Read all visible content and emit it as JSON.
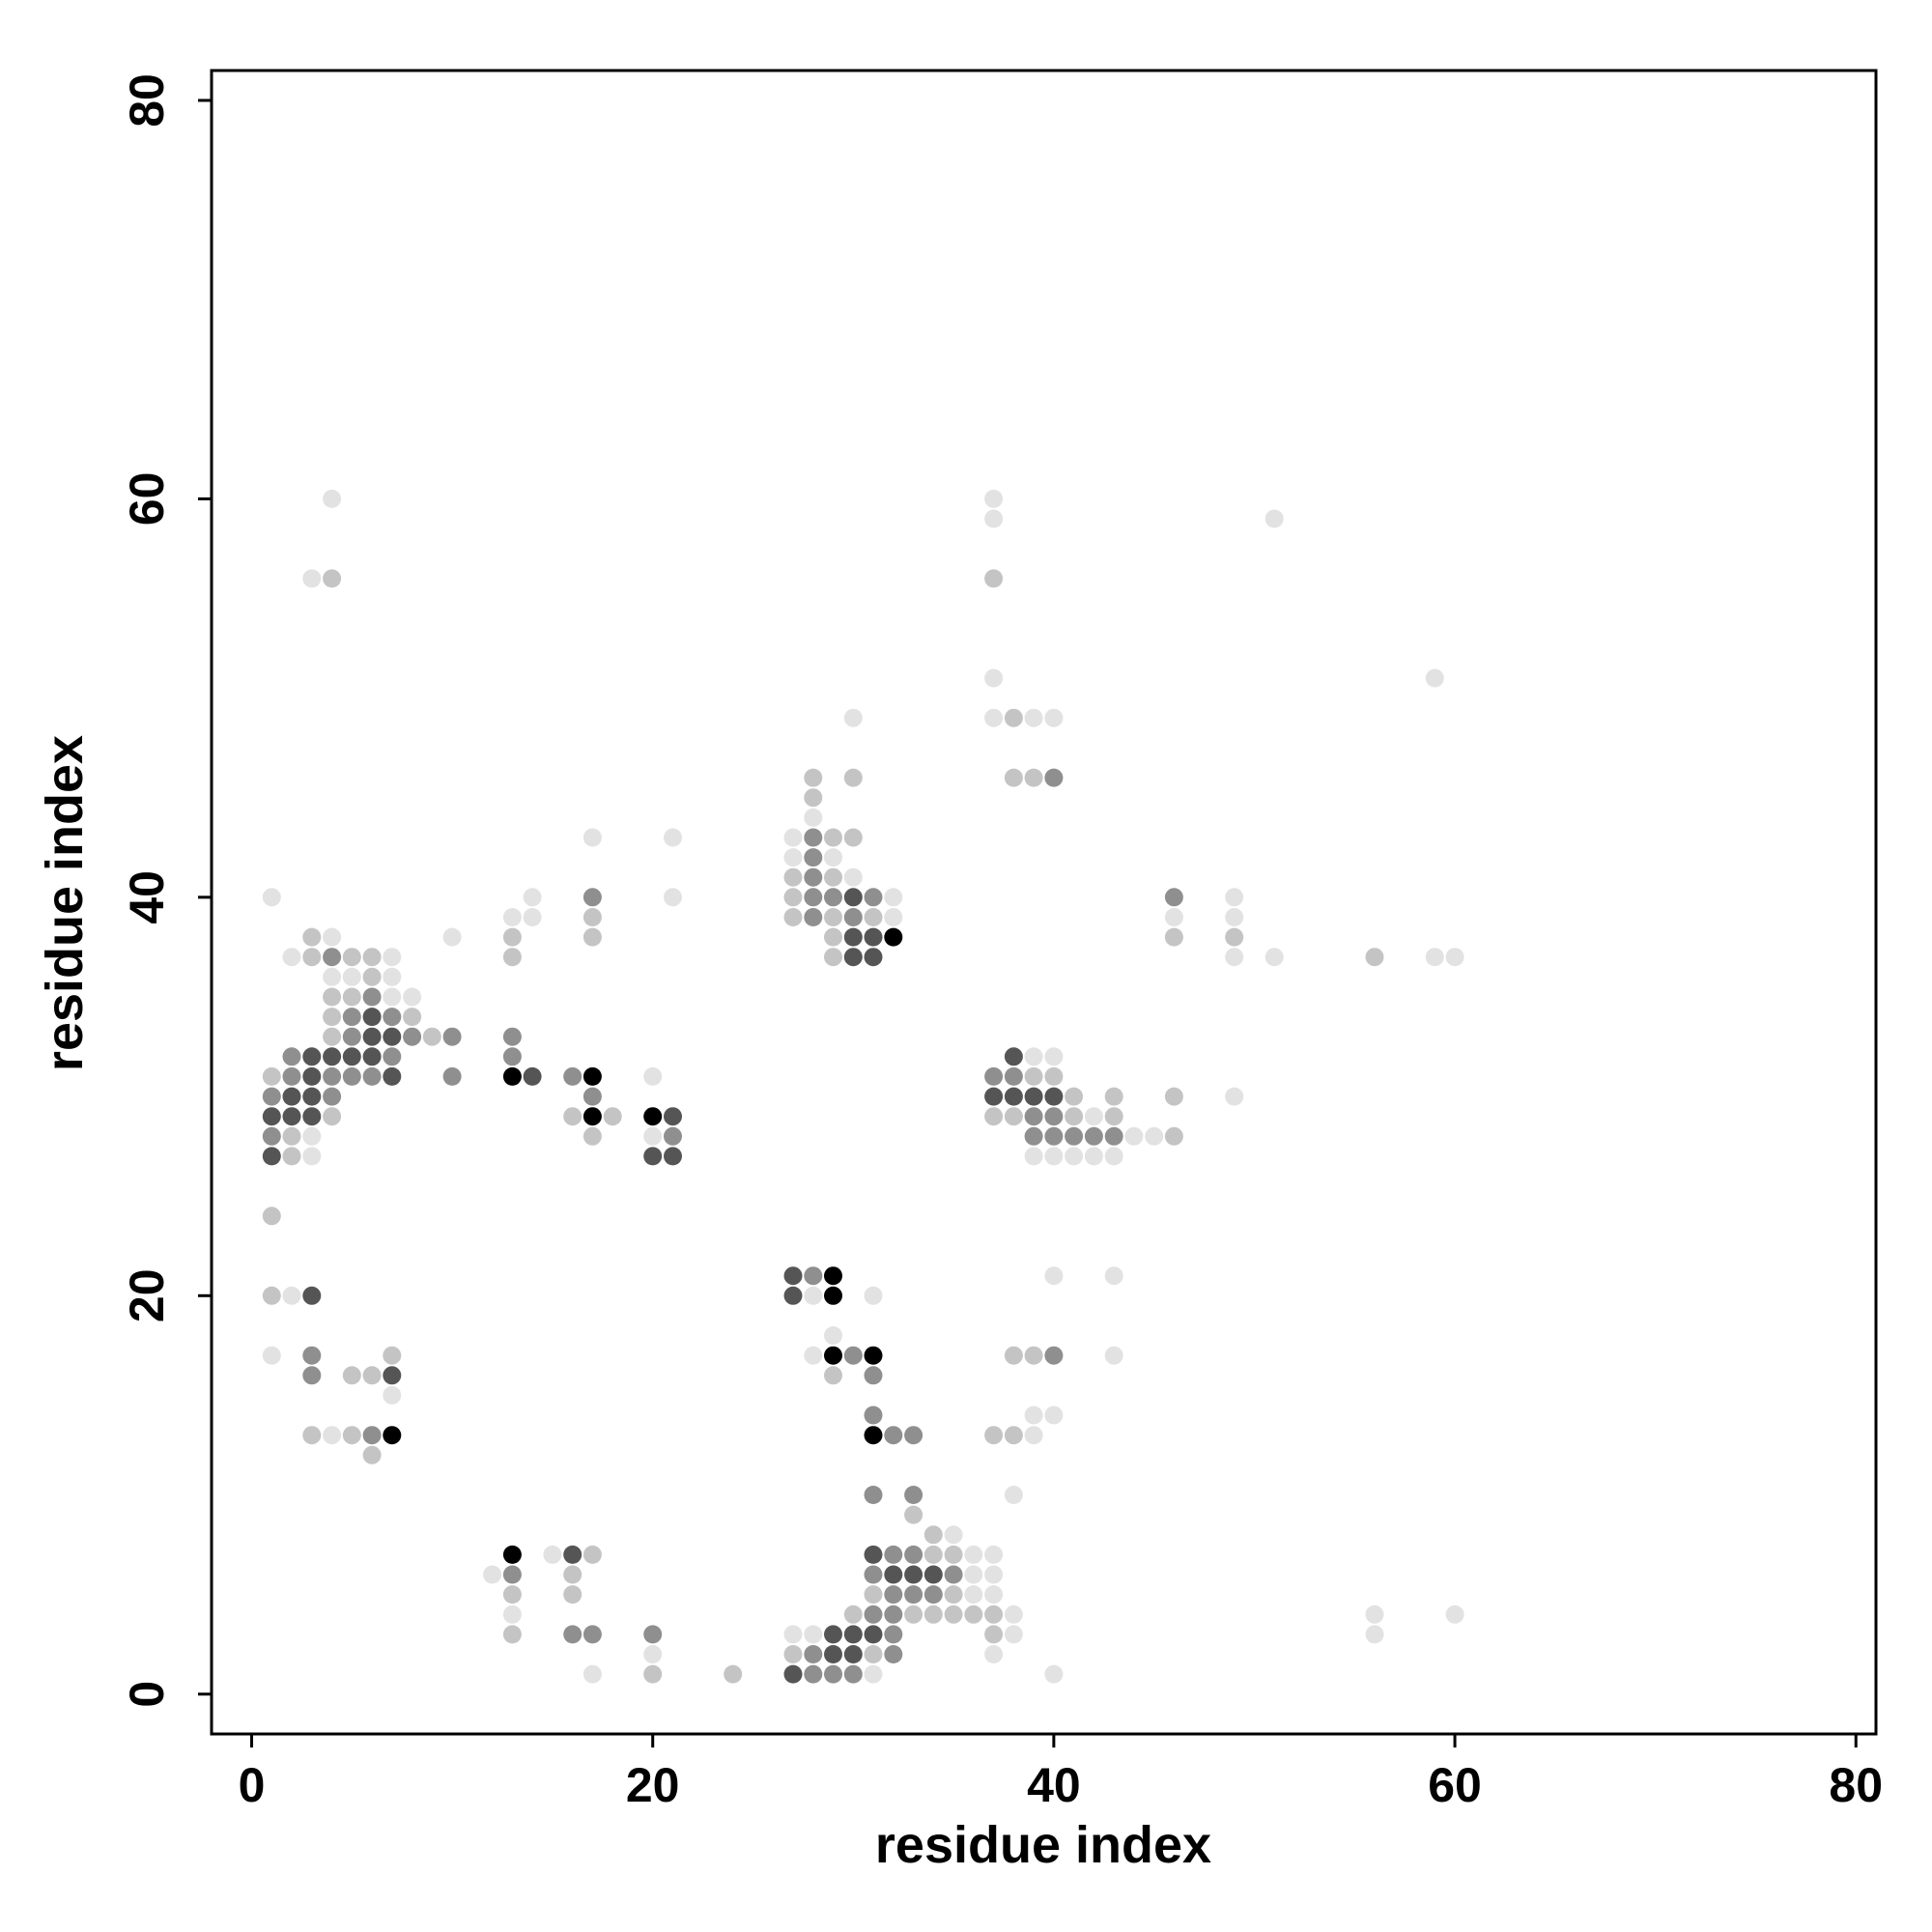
{
  "chart_data": {
    "type": "scatter",
    "title": "",
    "xlabel": "residue index",
    "ylabel": "residue index",
    "xlim": [
      -2,
      81
    ],
    "ylim": [
      -2,
      81.5
    ],
    "xticks": [
      0,
      20,
      40,
      60,
      80
    ],
    "yticks": [
      0,
      20,
      40,
      60,
      80
    ],
    "grid": false,
    "legend": "none",
    "color_scale": "grayscale, darker = higher value (1-5)",
    "points": [
      [
        4,
        60,
        1
      ],
      [
        3,
        56,
        1
      ],
      [
        4,
        56,
        2
      ],
      [
        1,
        40,
        1
      ],
      [
        3,
        38,
        2
      ],
      [
        4,
        38,
        1
      ],
      [
        2,
        37,
        1
      ],
      [
        3,
        37,
        2
      ],
      [
        4,
        37,
        3
      ],
      [
        5,
        37,
        2
      ],
      [
        6,
        37,
        2
      ],
      [
        7,
        37,
        1
      ],
      [
        4,
        36,
        1
      ],
      [
        5,
        36,
        1
      ],
      [
        6,
        36,
        2
      ],
      [
        7,
        36,
        1
      ],
      [
        4,
        35,
        2
      ],
      [
        5,
        35,
        2
      ],
      [
        6,
        35,
        3
      ],
      [
        7,
        35,
        1
      ],
      [
        8,
        35,
        1
      ],
      [
        4,
        34,
        2
      ],
      [
        5,
        34,
        3
      ],
      [
        6,
        34,
        4
      ],
      [
        7,
        34,
        3
      ],
      [
        8,
        34,
        2
      ],
      [
        4,
        33,
        2
      ],
      [
        5,
        33,
        3
      ],
      [
        6,
        33,
        4
      ],
      [
        7,
        33,
        4
      ],
      [
        8,
        33,
        3
      ],
      [
        9,
        33,
        2
      ],
      [
        10,
        33,
        3
      ],
      [
        2,
        32,
        3
      ],
      [
        3,
        32,
        4
      ],
      [
        4,
        32,
        4
      ],
      [
        5,
        32,
        4
      ],
      [
        6,
        32,
        4
      ],
      [
        7,
        32,
        3
      ],
      [
        1,
        31,
        2
      ],
      [
        2,
        31,
        3
      ],
      [
        3,
        31,
        4
      ],
      [
        4,
        31,
        3
      ],
      [
        5,
        31,
        3
      ],
      [
        6,
        31,
        3
      ],
      [
        7,
        31,
        4
      ],
      [
        10,
        31,
        3
      ],
      [
        1,
        30,
        3
      ],
      [
        2,
        30,
        4
      ],
      [
        3,
        30,
        4
      ],
      [
        4,
        30,
        3
      ],
      [
        1,
        29,
        4
      ],
      [
        2,
        29,
        4
      ],
      [
        3,
        29,
        4
      ],
      [
        4,
        29,
        2
      ],
      [
        1,
        28,
        3
      ],
      [
        2,
        28,
        2
      ],
      [
        3,
        28,
        1
      ],
      [
        1,
        27,
        4
      ],
      [
        2,
        27,
        2
      ],
      [
        3,
        27,
        1
      ],
      [
        1,
        24,
        2
      ],
      [
        1,
        20,
        2
      ],
      [
        2,
        20,
        1
      ],
      [
        3,
        20,
        4
      ],
      [
        1,
        17,
        1
      ],
      [
        3,
        17,
        3
      ],
      [
        7,
        17,
        2
      ],
      [
        3,
        16,
        3
      ],
      [
        5,
        16,
        2
      ],
      [
        6,
        16,
        2
      ],
      [
        7,
        16,
        4
      ],
      [
        7,
        15,
        1
      ],
      [
        3,
        13,
        2
      ],
      [
        4,
        13,
        1
      ],
      [
        5,
        13,
        2
      ],
      [
        6,
        13,
        3
      ],
      [
        7,
        13,
        5
      ],
      [
        6,
        12,
        2
      ],
      [
        10,
        38,
        1
      ],
      [
        13,
        39,
        1
      ],
      [
        14,
        39,
        1
      ],
      [
        14,
        40,
        1
      ],
      [
        13,
        38,
        2
      ],
      [
        13,
        37,
        2
      ],
      [
        13,
        33,
        3
      ],
      [
        13,
        32,
        3
      ],
      [
        13,
        31,
        5
      ],
      [
        14,
        31,
        4
      ],
      [
        17,
        43,
        1
      ],
      [
        17,
        40,
        3
      ],
      [
        17,
        39,
        2
      ],
      [
        17,
        38,
        2
      ],
      [
        16,
        31,
        3
      ],
      [
        17,
        31,
        5
      ],
      [
        17,
        30,
        3
      ],
      [
        16,
        29,
        2
      ],
      [
        17,
        29,
        5
      ],
      [
        18,
        29,
        2
      ],
      [
        17,
        28,
        2
      ],
      [
        21,
        43,
        1
      ],
      [
        21,
        40,
        1
      ],
      [
        20,
        31,
        1
      ],
      [
        20,
        29,
        5
      ],
      [
        21,
        29,
        4
      ],
      [
        20,
        28,
        1
      ],
      [
        21,
        28,
        3
      ],
      [
        20,
        27,
        4
      ],
      [
        21,
        27,
        4
      ],
      [
        13,
        7,
        5
      ],
      [
        15,
        7,
        1
      ],
      [
        16,
        7,
        4
      ],
      [
        17,
        7,
        2
      ],
      [
        12,
        6,
        1
      ],
      [
        13,
        6,
        3
      ],
      [
        16,
        6,
        2
      ],
      [
        13,
        5,
        2
      ],
      [
        16,
        5,
        2
      ],
      [
        13,
        4,
        1
      ],
      [
        13,
        3,
        2
      ],
      [
        16,
        3,
        3
      ],
      [
        17,
        3,
        3
      ],
      [
        17,
        1,
        1
      ],
      [
        20,
        3,
        3
      ],
      [
        20,
        2,
        1
      ],
      [
        20,
        1,
        2
      ],
      [
        24,
        1,
        2
      ],
      [
        28,
        46,
        2
      ],
      [
        28,
        45,
        2
      ],
      [
        28,
        44,
        1
      ],
      [
        27,
        43,
        1
      ],
      [
        28,
        43,
        3
      ],
      [
        29,
        43,
        2
      ],
      [
        30,
        43,
        2
      ],
      [
        27,
        42,
        1
      ],
      [
        28,
        42,
        3
      ],
      [
        29,
        42,
        1
      ],
      [
        27,
        41,
        2
      ],
      [
        28,
        41,
        3
      ],
      [
        29,
        41,
        2
      ],
      [
        30,
        41,
        1
      ],
      [
        27,
        40,
        2
      ],
      [
        28,
        40,
        3
      ],
      [
        29,
        40,
        3
      ],
      [
        30,
        40,
        4
      ],
      [
        31,
        40,
        3
      ],
      [
        32,
        40,
        1
      ],
      [
        27,
        39,
        2
      ],
      [
        28,
        39,
        3
      ],
      [
        29,
        39,
        2
      ],
      [
        30,
        39,
        3
      ],
      [
        31,
        39,
        2
      ],
      [
        32,
        39,
        1
      ],
      [
        29,
        38,
        2
      ],
      [
        30,
        38,
        4
      ],
      [
        31,
        38,
        4
      ],
      [
        32,
        38,
        5
      ],
      [
        29,
        37,
        2
      ],
      [
        30,
        37,
        4
      ],
      [
        31,
        37,
        4
      ],
      [
        30,
        49,
        1
      ],
      [
        30,
        46,
        2
      ],
      [
        27,
        21,
        4
      ],
      [
        28,
        21,
        3
      ],
      [
        29,
        21,
        5
      ],
      [
        27,
        20,
        4
      ],
      [
        28,
        20,
        1
      ],
      [
        29,
        20,
        5
      ],
      [
        31,
        20,
        1
      ],
      [
        29,
        18,
        1
      ],
      [
        28,
        17,
        1
      ],
      [
        29,
        17,
        5
      ],
      [
        30,
        17,
        3
      ],
      [
        31,
        17,
        5
      ],
      [
        29,
        16,
        2
      ],
      [
        31,
        16,
        3
      ],
      [
        31,
        14,
        3
      ],
      [
        31,
        13,
        5
      ],
      [
        32,
        13,
        3
      ],
      [
        33,
        13,
        3
      ],
      [
        31,
        10,
        3
      ],
      [
        33,
        10,
        3
      ],
      [
        33,
        9,
        2
      ],
      [
        34,
        8,
        2
      ],
      [
        35,
        8,
        1
      ],
      [
        31,
        7,
        4
      ],
      [
        32,
        7,
        3
      ],
      [
        33,
        7,
        3
      ],
      [
        34,
        7,
        2
      ],
      [
        35,
        7,
        2
      ],
      [
        36,
        7,
        1
      ],
      [
        37,
        7,
        1
      ],
      [
        31,
        6,
        3
      ],
      [
        32,
        6,
        4
      ],
      [
        33,
        6,
        4
      ],
      [
        34,
        6,
        4
      ],
      [
        35,
        6,
        3
      ],
      [
        36,
        6,
        1
      ],
      [
        37,
        6,
        1
      ],
      [
        31,
        5,
        2
      ],
      [
        32,
        5,
        3
      ],
      [
        33,
        5,
        3
      ],
      [
        34,
        5,
        3
      ],
      [
        35,
        5,
        2
      ],
      [
        36,
        5,
        1
      ],
      [
        37,
        5,
        1
      ],
      [
        30,
        4,
        2
      ],
      [
        31,
        4,
        3
      ],
      [
        32,
        4,
        3
      ],
      [
        33,
        4,
        2
      ],
      [
        34,
        4,
        2
      ],
      [
        35,
        4,
        2
      ],
      [
        36,
        4,
        2
      ],
      [
        37,
        4,
        2
      ],
      [
        38,
        4,
        1
      ],
      [
        27,
        3,
        1
      ],
      [
        28,
        3,
        1
      ],
      [
        29,
        3,
        4
      ],
      [
        30,
        3,
        4
      ],
      [
        31,
        3,
        4
      ],
      [
        32,
        3,
        3
      ],
      [
        37,
        3,
        2
      ],
      [
        38,
        3,
        1
      ],
      [
        27,
        2,
        2
      ],
      [
        28,
        2,
        3
      ],
      [
        29,
        2,
        4
      ],
      [
        30,
        2,
        4
      ],
      [
        31,
        2,
        2
      ],
      [
        32,
        2,
        3
      ],
      [
        37,
        2,
        1
      ],
      [
        27,
        1,
        4
      ],
      [
        28,
        1,
        3
      ],
      [
        29,
        1,
        3
      ],
      [
        30,
        1,
        3
      ],
      [
        31,
        1,
        1
      ],
      [
        40,
        1,
        1
      ],
      [
        37,
        60,
        1
      ],
      [
        37,
        59,
        1
      ],
      [
        37,
        56,
        2
      ],
      [
        37,
        51,
        1
      ],
      [
        37,
        49,
        1
      ],
      [
        38,
        49,
        2
      ],
      [
        39,
        49,
        1
      ],
      [
        40,
        49,
        1
      ],
      [
        38,
        46,
        2
      ],
      [
        39,
        46,
        2
      ],
      [
        40,
        46,
        3
      ],
      [
        38,
        32,
        4
      ],
      [
        39,
        32,
        1
      ],
      [
        40,
        32,
        1
      ],
      [
        37,
        31,
        3
      ],
      [
        38,
        31,
        3
      ],
      [
        39,
        31,
        2
      ],
      [
        40,
        31,
        2
      ],
      [
        37,
        30,
        4
      ],
      [
        38,
        30,
        4
      ],
      [
        39,
        30,
        4
      ],
      [
        40,
        30,
        4
      ],
      [
        41,
        30,
        2
      ],
      [
        43,
        30,
        2
      ],
      [
        46,
        30,
        2
      ],
      [
        37,
        29,
        2
      ],
      [
        38,
        29,
        2
      ],
      [
        39,
        29,
        3
      ],
      [
        40,
        29,
        3
      ],
      [
        41,
        29,
        2
      ],
      [
        42,
        29,
        1
      ],
      [
        43,
        29,
        2
      ],
      [
        39,
        28,
        3
      ],
      [
        40,
        28,
        3
      ],
      [
        41,
        28,
        3
      ],
      [
        42,
        28,
        3
      ],
      [
        43,
        28,
        3
      ],
      [
        44,
        28,
        1
      ],
      [
        45,
        28,
        1
      ],
      [
        46,
        28,
        2
      ],
      [
        39,
        27,
        1
      ],
      [
        40,
        27,
        1
      ],
      [
        41,
        27,
        1
      ],
      [
        42,
        27,
        1
      ],
      [
        43,
        27,
        1
      ],
      [
        40,
        21,
        1
      ],
      [
        43,
        21,
        1
      ],
      [
        38,
        17,
        2
      ],
      [
        39,
        17,
        2
      ],
      [
        40,
        17,
        3
      ],
      [
        43,
        17,
        1
      ],
      [
        39,
        14,
        1
      ],
      [
        40,
        14,
        1
      ],
      [
        37,
        13,
        2
      ],
      [
        38,
        13,
        2
      ],
      [
        39,
        13,
        1
      ],
      [
        38,
        10,
        1
      ],
      [
        46,
        40,
        3
      ],
      [
        46,
        39,
        1
      ],
      [
        46,
        38,
        2
      ],
      [
        49,
        40,
        1
      ],
      [
        49,
        39,
        1
      ],
      [
        49,
        38,
        2
      ],
      [
        49,
        37,
        1
      ],
      [
        49,
        30,
        1
      ],
      [
        51,
        59,
        1
      ],
      [
        51,
        37,
        1
      ],
      [
        56,
        37,
        2
      ],
      [
        59,
        37,
        1
      ],
      [
        60,
        37,
        1
      ],
      [
        59,
        51,
        1
      ],
      [
        56,
        4,
        1
      ],
      [
        56,
        3,
        1
      ],
      [
        60,
        4,
        1
      ]
    ]
  }
}
